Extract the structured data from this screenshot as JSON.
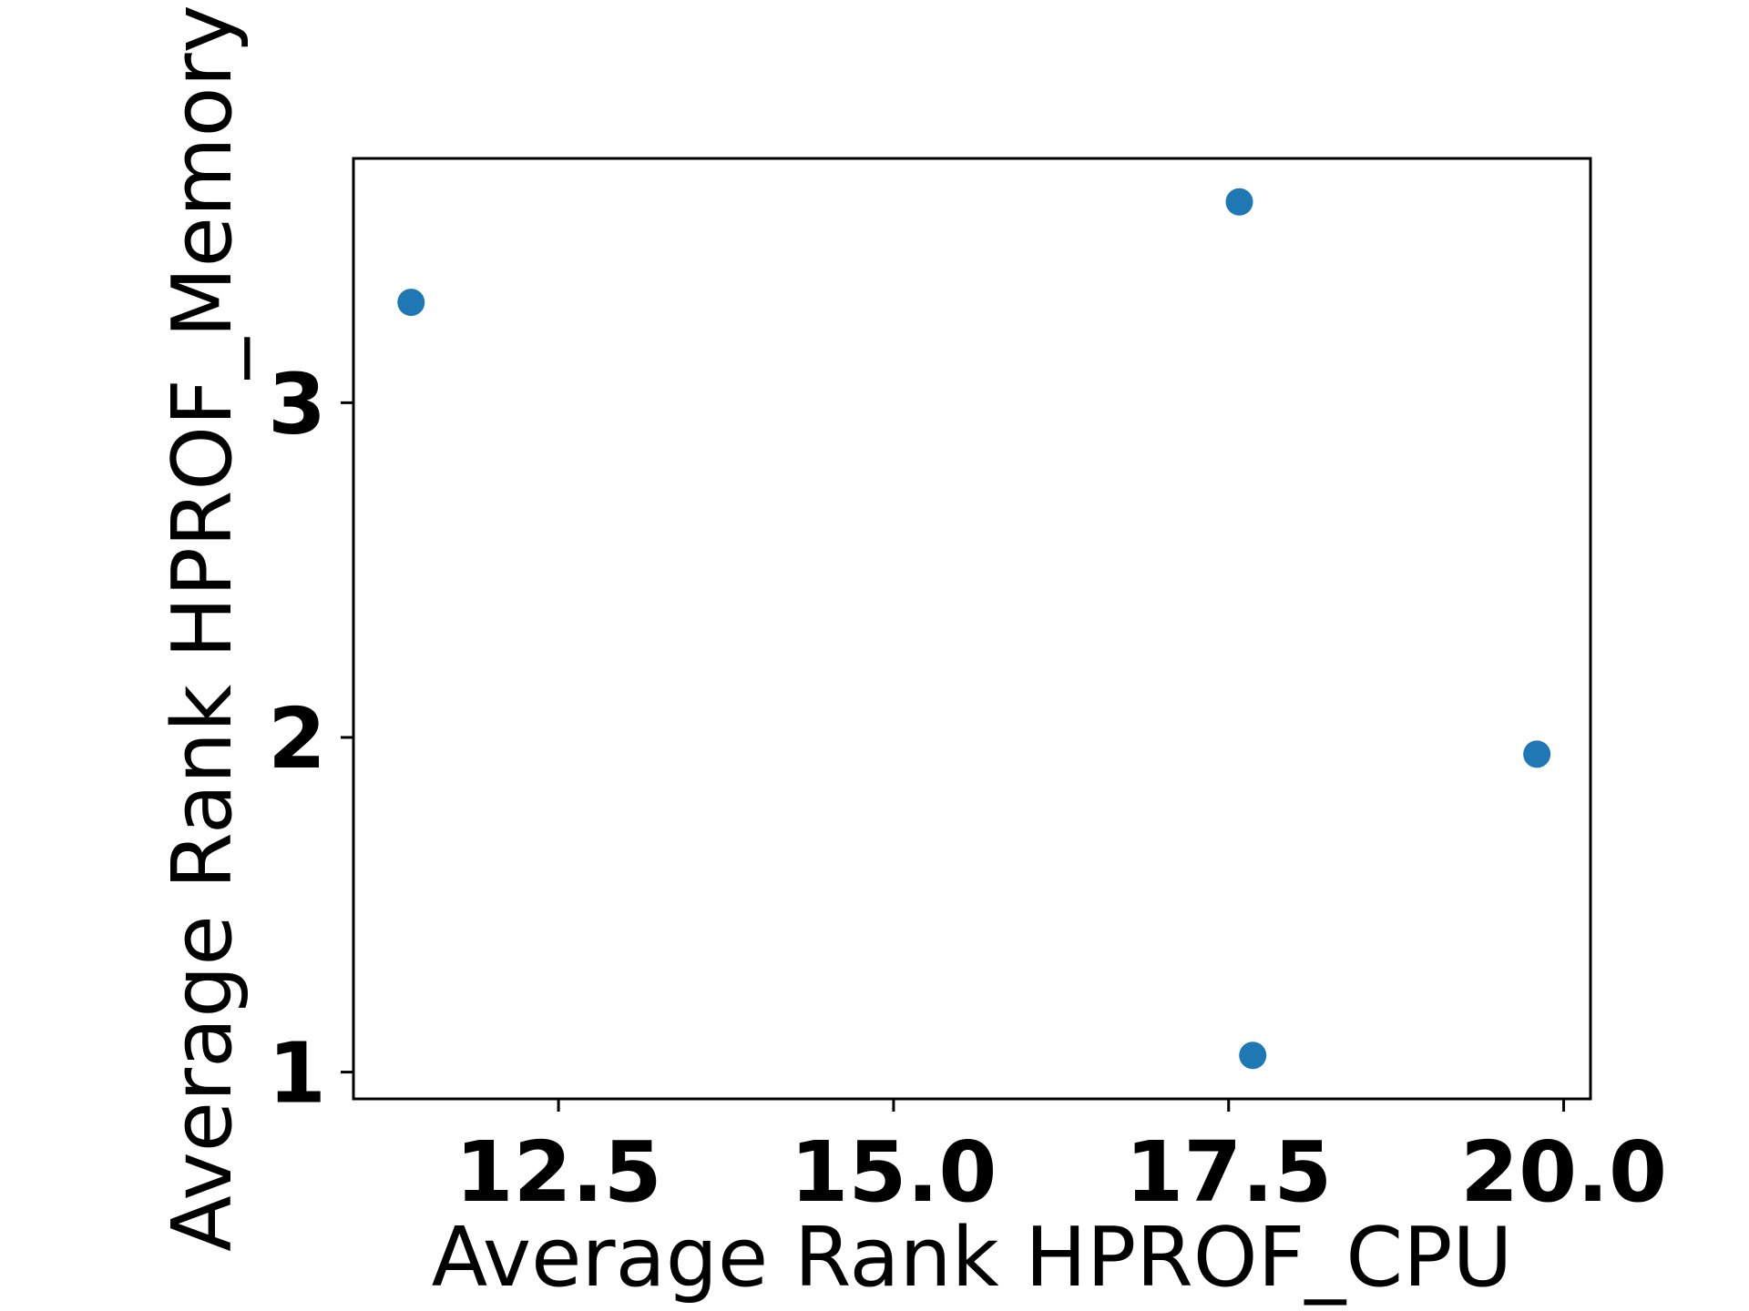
{
  "chart_data": {
    "type": "scatter",
    "title": "",
    "xlabel": "Average Rank HPROF_CPU",
    "ylabel": "Average Rank HPROF_Memory",
    "xlim": [
      10.97,
      20.2
    ],
    "ylim": [
      0.92,
      3.73
    ],
    "x_ticks": [
      12.5,
      15.0,
      17.5,
      20.0
    ],
    "x_tick_labels": [
      "12.5",
      "15.0",
      "17.5",
      "20.0"
    ],
    "y_ticks": [
      1,
      2,
      3
    ],
    "y_tick_labels": [
      "1",
      "2",
      "3"
    ],
    "grid": false,
    "marker_color": "#1f77b4",
    "points": [
      {
        "x": 11.4,
        "y": 3.3
      },
      {
        "x": 17.58,
        "y": 3.6
      },
      {
        "x": 17.68,
        "y": 1.05
      },
      {
        "x": 19.8,
        "y": 1.95
      }
    ]
  }
}
